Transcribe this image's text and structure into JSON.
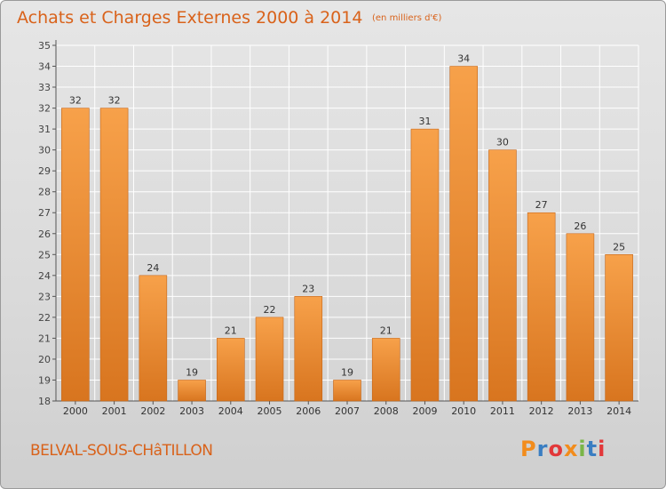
{
  "header": {
    "title": "Achats et Charges Externes 2000 à 2014",
    "unit": "(en milliers d'€)"
  },
  "footer": {
    "commune": "BELVAL-SOUS-CHâTILLON",
    "logo_text": "Proxiti",
    "logo_colors": [
      "#f28c1c",
      "#3a7ec2",
      "#e2383a",
      "#f28c1c",
      "#7ab648",
      "#3a7ec2",
      "#e2383a"
    ]
  },
  "colors": {
    "bar_top": "#f7a14a",
    "bar_bottom": "#d8751f",
    "accent": "#d9621a",
    "grid": "#ffffff"
  },
  "chart_data": {
    "type": "bar",
    "categories": [
      "2000",
      "2001",
      "2002",
      "2003",
      "2004",
      "2005",
      "2006",
      "2007",
      "2008",
      "2009",
      "2010",
      "2011",
      "2012",
      "2013",
      "2014"
    ],
    "values": [
      32,
      32,
      24,
      19,
      21,
      22,
      23,
      19,
      21,
      31,
      34,
      30,
      27,
      26,
      25
    ],
    "title": "Achats et Charges Externes 2000 à 2014",
    "ylim": [
      18,
      35
    ],
    "yticks": [
      18,
      19,
      20,
      21,
      22,
      23,
      24,
      25,
      26,
      27,
      28,
      29,
      30,
      31,
      32,
      33,
      34,
      35
    ],
    "grid": true,
    "legend": "none"
  }
}
